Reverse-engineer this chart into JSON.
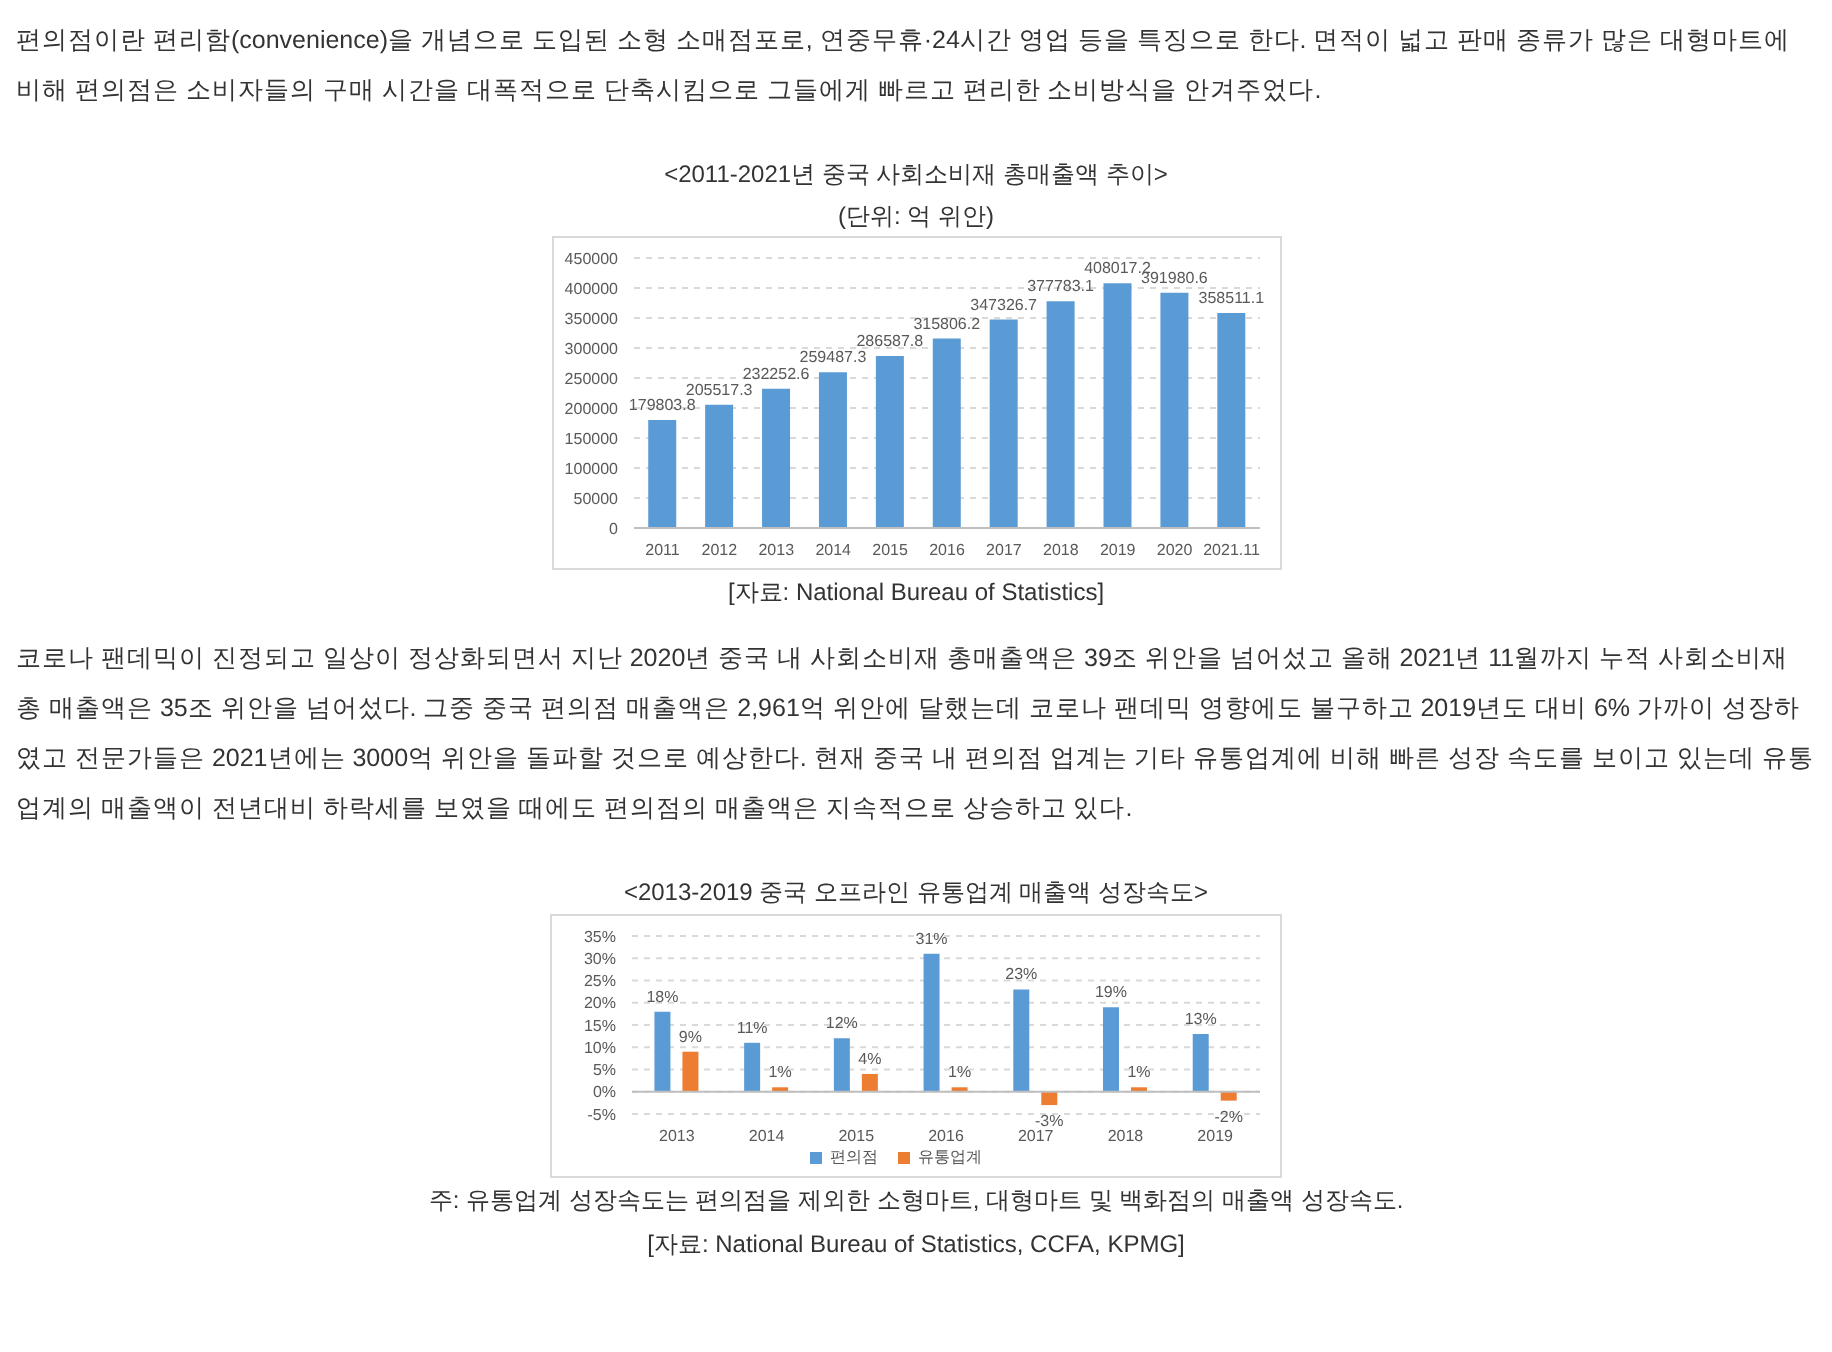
{
  "chart_data": [
    {
      "type": "bar",
      "title": "<2011-2021년 중국 사회소비재 총매출액 추이>",
      "subtitle": "(단위: 억 위안)",
      "annotations": [
        "편의점이란 편리함(convenience)을 개념으로 도입된 소형 소매점포로, 연중무휴·24시간 영업 등을 특징으로 한다. 면적이 넓고 판매 종류가 많은 대형마트에 비해 편의점은 소비자들의 구매 시간을 대폭적으로 단축시킴으로 그들에게 빠르고 편리한 소비방식을 안겨주었다.",
        "[자료: National Bureau of Statistics]"
      ],
      "categories": [
        "2011",
        "2012",
        "2013",
        "2014",
        "2015",
        "2016",
        "2017",
        "2018",
        "2019",
        "2020",
        "2021.11"
      ],
      "values": [
        179803.8,
        205517.3,
        232252.6,
        259487.3,
        286587.8,
        315806.2,
        347326.7,
        377783.1,
        408017.2,
        391980.6,
        358511.1
      ],
      "color": "#5b9bd5",
      "ylim": [
        0,
        450000
      ],
      "yticks": [
        0,
        50000,
        100000,
        150000,
        200000,
        250000,
        300000,
        350000,
        400000,
        450000
      ],
      "grid": "y",
      "data_labels": true,
      "legend": false
    },
    {
      "type": "bar",
      "title": "<2013-2019 중국 오프라인 유통업계 매출액 성장속도>",
      "annotations": [
        "코로나 팬데믹이 진정되고 일상이 정상화되면서 지난 2020년 중국 내 사회소비재 총매출액은 39조 위안을 넘어섰고 올해 2021년 11월까지 누적 사회소비재 총 매출액은 35조 위안을 넘어섰다. 그중 중국 편의점 매출액은 2,961억 위안에 달했는데 코로나 팬데믹 영향에도 불구하고 2019년도 대비 6% 가까이 성장하였고 전문가들은 2021년에는 3000억 위안을 돌파할 것으로 예상한다. 현재 중국 내 편의점 업계는 기타 유통업계에 비해 빠른 성장 속도를 보이고 있는데 유통업계의 매출액이 전년대비 하락세를 보였을 때에도 편의점의 매출액은 지속적으로 상승하고 있다.",
        "주: 유통업계 성장속도는 편의점을 제외한 소형마트, 대형마트 및 백화점의 매출액 성장속도.",
        "[자료: National Bureau of Statistics, CCFA, KPMG]"
      ],
      "categories": [
        "2013",
        "2014",
        "2015",
        "2016",
        "2017",
        "2018",
        "2019"
      ],
      "series": [
        {
          "name": "편의점",
          "color": "#5b9bd5",
          "values": [
            18,
            11,
            12,
            31,
            23,
            19,
            13
          ],
          "value_labels": [
            "18%",
            "11%",
            "12%",
            "31%",
            "23%",
            "19%",
            "13%"
          ]
        },
        {
          "name": "유통업계",
          "color": "#ed7d31",
          "values": [
            9,
            1,
            4,
            1,
            -3,
            1,
            -2
          ],
          "value_labels": [
            "9%",
            "1%",
            "4%",
            "1%",
            "-3%",
            "1%",
            "-2%"
          ]
        }
      ],
      "ylim": [
        -5,
        35
      ],
      "yticks": [
        {
          "value": -5,
          "label": "-5%"
        },
        {
          "value": 0,
          "label": "0%"
        },
        {
          "value": 5,
          "label": "5%"
        },
        {
          "value": 10,
          "label": "10%"
        },
        {
          "value": 15,
          "label": "15%"
        },
        {
          "value": 20,
          "label": "20%"
        },
        {
          "value": 25,
          "label": "25%"
        },
        {
          "value": 30,
          "label": "30%"
        },
        {
          "value": 35,
          "label": "35%"
        }
      ],
      "grid": "y",
      "legend": "bottom"
    }
  ]
}
